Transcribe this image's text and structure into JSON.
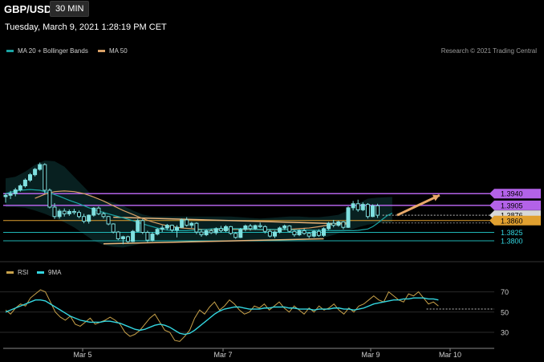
{
  "header": {
    "symbol": "GBP/USD",
    "interval": "30 MIN",
    "datetime": "Tuesday, March 9, 2021 1:28:19 PM CET"
  },
  "legend": {
    "ma20": "MA 20 + Bollinger Bands",
    "ma50": "MA 50",
    "rsi": "RSI",
    "rsi_ma": "9MA",
    "credit": "Research © 2021 Trading Central"
  },
  "colors": {
    "ma20": "#1aa3a3",
    "ma50": "#d9a066",
    "rsi": "#c8a24a",
    "rsi_ma": "#33d6e0",
    "resistance": "#b362e8",
    "support": "#1fb5b5",
    "candle": "#7fe0e0"
  },
  "chart_data": [
    {
      "type": "candlestick",
      "title": "GBP/USD 30 MIN",
      "x_ticks": [
        "Mar 5",
        "Mar 7",
        "Mar 9",
        "Mar 10"
      ],
      "levels": [
        {
          "value": 1.394,
          "label": "1.3940",
          "kind": "resistance"
        },
        {
          "value": 1.3905,
          "label": "1.3905",
          "kind": "resistance"
        },
        {
          "value": 1.3876,
          "label": "1.3876",
          "kind": "last"
        },
        {
          "value": 1.386,
          "label": "1.3860",
          "kind": "pivot"
        },
        {
          "value": 1.3825,
          "label": "1.3825",
          "kind": "support"
        },
        {
          "value": 1.38,
          "label": "1.3800",
          "kind": "support"
        }
      ],
      "ohlc": [
        [
          1.3931,
          1.3941,
          1.3913,
          1.3935
        ],
        [
          1.3935,
          1.3948,
          1.3924,
          1.394
        ],
        [
          1.394,
          1.3957,
          1.3932,
          1.3951
        ],
        [
          1.3951,
          1.3968,
          1.3946,
          1.3963
        ],
        [
          1.3963,
          1.3985,
          1.3958,
          1.398
        ],
        [
          1.398,
          1.4001,
          1.3975,
          1.3996
        ],
        [
          1.3996,
          1.4016,
          1.3991,
          1.4012
        ],
        [
          1.4012,
          1.4032,
          1.4008,
          1.4026
        ],
        [
          1.4026,
          1.403,
          1.394,
          1.395
        ],
        [
          1.395,
          1.3955,
          1.3896,
          1.39
        ],
        [
          1.39,
          1.3912,
          1.3865,
          1.3872
        ],
        [
          1.3872,
          1.3894,
          1.3866,
          1.3888
        ],
        [
          1.3888,
          1.3896,
          1.3872,
          1.388
        ],
        [
          1.388,
          1.3893,
          1.3874,
          1.3887
        ],
        [
          1.3887,
          1.3895,
          1.3878,
          1.3884
        ],
        [
          1.3884,
          1.389,
          1.3867,
          1.3872
        ],
        [
          1.3872,
          1.388,
          1.3852,
          1.3858
        ],
        [
          1.3858,
          1.3878,
          1.3851,
          1.3876
        ],
        [
          1.3876,
          1.39,
          1.3872,
          1.3897
        ],
        [
          1.3897,
          1.3902,
          1.3876,
          1.388
        ],
        [
          1.388,
          1.3886,
          1.3866,
          1.3872
        ],
        [
          1.3872,
          1.3874,
          1.3846,
          1.385
        ],
        [
          1.385,
          1.3852,
          1.3822,
          1.3826
        ],
        [
          1.3826,
          1.3829,
          1.3802,
          1.3806
        ],
        [
          1.3806,
          1.3815,
          1.379,
          1.3812
        ],
        [
          1.3812,
          1.3815,
          1.3794,
          1.3798
        ],
        [
          1.3798,
          1.3832,
          1.3796,
          1.3828
        ],
        [
          1.3828,
          1.3865,
          1.3826,
          1.386
        ],
        [
          1.386,
          1.3864,
          1.382,
          1.3825
        ],
        [
          1.3825,
          1.383,
          1.3796,
          1.3802
        ],
        [
          1.3802,
          1.3826,
          1.3798,
          1.382
        ],
        [
          1.382,
          1.3838,
          1.3816,
          1.3834
        ],
        [
          1.3834,
          1.3846,
          1.3826,
          1.3838
        ],
        [
          1.3838,
          1.385,
          1.3832,
          1.3846
        ],
        [
          1.3846,
          1.3848,
          1.3826,
          1.3832
        ],
        [
          1.3832,
          1.3846,
          1.381,
          1.384
        ],
        [
          1.384,
          1.3866,
          1.3838,
          1.3862
        ],
        [
          1.3862,
          1.387,
          1.3842,
          1.3846
        ],
        [
          1.3846,
          1.3856,
          1.3838,
          1.3852
        ],
        [
          1.3852,
          1.3855,
          1.382,
          1.3826
        ],
        [
          1.3826,
          1.3834,
          1.3812,
          1.3818
        ],
        [
          1.3818,
          1.3834,
          1.3814,
          1.383
        ],
        [
          1.383,
          1.3836,
          1.382,
          1.3824
        ],
        [
          1.3824,
          1.384,
          1.3818,
          1.3836
        ],
        [
          1.3836,
          1.3844,
          1.3824,
          1.383
        ],
        [
          1.383,
          1.3846,
          1.3826,
          1.3842
        ],
        [
          1.3842,
          1.3844,
          1.3818,
          1.3822
        ],
        [
          1.3822,
          1.3826,
          1.3806,
          1.381
        ],
        [
          1.381,
          1.3838,
          1.3808,
          1.3834
        ],
        [
          1.3834,
          1.3848,
          1.3828,
          1.3844
        ],
        [
          1.3844,
          1.385,
          1.383,
          1.3836
        ],
        [
          1.3836,
          1.3848,
          1.3832,
          1.3845
        ],
        [
          1.3845,
          1.3854,
          1.3838,
          1.3842
        ],
        [
          1.3842,
          1.3846,
          1.3822,
          1.3828
        ],
        [
          1.3828,
          1.3834,
          1.381,
          1.3814
        ],
        [
          1.3814,
          1.383,
          1.3808,
          1.3826
        ],
        [
          1.3826,
          1.3842,
          1.3822,
          1.3838
        ],
        [
          1.3838,
          1.3848,
          1.3832,
          1.3844
        ],
        [
          1.3844,
          1.3846,
          1.3824,
          1.3828
        ],
        [
          1.3828,
          1.3832,
          1.3812,
          1.3818
        ],
        [
          1.3818,
          1.3834,
          1.3814,
          1.383
        ],
        [
          1.383,
          1.3836,
          1.3818,
          1.3822
        ],
        [
          1.3822,
          1.3826,
          1.3808,
          1.3814
        ],
        [
          1.3814,
          1.3832,
          1.381,
          1.3828
        ],
        [
          1.3828,
          1.3834,
          1.3812,
          1.3816
        ],
        [
          1.3816,
          1.384,
          1.3812,
          1.3836
        ],
        [
          1.3836,
          1.3856,
          1.3832,
          1.3852
        ],
        [
          1.3852,
          1.3862,
          1.384,
          1.3846
        ],
        [
          1.3846,
          1.386,
          1.3842,
          1.3856
        ],
        [
          1.3856,
          1.3858,
          1.3834,
          1.384
        ],
        [
          1.384,
          1.3902,
          1.3838,
          1.3898
        ],
        [
          1.3898,
          1.3918,
          1.389,
          1.391
        ],
        [
          1.391,
          1.3922,
          1.3886,
          1.3892
        ],
        [
          1.3892,
          1.3914,
          1.3888,
          1.3908
        ],
        [
          1.3908,
          1.3912,
          1.3866,
          1.3872
        ],
        [
          1.3872,
          1.3908,
          1.387,
          1.3904
        ],
        [
          1.3904,
          1.391,
          1.3868,
          1.3876
        ]
      ],
      "ma20": [
        1.394,
        1.3944,
        1.395,
        1.3952,
        1.395,
        1.3942,
        1.3932,
        1.392,
        1.391,
        1.3898,
        1.3888,
        1.388,
        1.3872,
        1.3864,
        1.3855,
        1.3846,
        1.3838,
        1.3832,
        1.383,
        1.383,
        1.3832,
        1.3834,
        1.3836,
        1.3836,
        1.3836,
        1.3836,
        1.3834,
        1.3834,
        1.3834,
        1.3834,
        1.3832,
        1.3832,
        1.3831,
        1.3831,
        1.383,
        1.383,
        1.383,
        1.383,
        1.3831,
        1.3833,
        1.3835,
        1.3842,
        1.3852,
        1.3864,
        1.3875,
        1.3882
      ],
      "ma20_x": [
        0,
        1,
        3,
        5,
        7,
        9,
        11,
        13,
        15,
        17,
        19,
        21,
        23,
        25,
        27,
        29,
        31,
        33,
        35,
        37,
        39,
        41,
        43,
        45,
        47,
        49,
        51,
        53,
        55,
        57,
        59,
        61,
        63,
        65,
        67,
        69,
        70,
        71,
        72,
        73,
        74,
        75,
        76,
        77,
        78,
        79
      ],
      "ma50": [
        1.3926,
        1.3938,
        1.3946,
        1.3948,
        1.3946,
        1.394,
        1.393,
        1.3918,
        1.3904,
        1.389,
        1.3878,
        1.3866,
        1.3856,
        1.3848,
        1.3842,
        1.3838,
        1.3836,
        1.3834,
        1.3834,
        1.3834,
        1.3834,
        1.3834,
        1.3834,
        1.3833,
        1.3833,
        1.3833,
        1.3834,
        1.3836,
        1.3838,
        1.3842,
        1.3847,
        1.3852,
        1.3855
      ],
      "ma50_x": [
        6,
        8,
        10,
        12,
        14,
        16,
        18,
        20,
        22,
        24,
        26,
        28,
        30,
        32,
        34,
        36,
        38,
        40,
        42,
        44,
        46,
        48,
        50,
        52,
        54,
        56,
        58,
        60,
        62,
        64,
        66,
        68,
        70
      ],
      "bb_upper": [
        1.3985,
        1.399,
        1.4005,
        1.4025,
        1.4038,
        1.4036,
        1.402,
        1.399,
        1.396,
        1.393,
        1.392,
        1.3914,
        1.3904,
        1.389,
        1.3878,
        1.3872,
        1.3872,
        1.3872,
        1.3872,
        1.3872,
        1.3872,
        1.3872,
        1.3872,
        1.3872,
        1.387,
        1.3868,
        1.3866,
        1.3868,
        1.387,
        1.3872,
        1.3872,
        1.387,
        1.387,
        1.3873,
        1.3877,
        1.389,
        1.391,
        1.3925,
        1.3928,
        1.393
      ],
      "bb_lower": [
        1.39,
        1.39,
        1.3898,
        1.389,
        1.388,
        1.3868,
        1.3855,
        1.384,
        1.382,
        1.38,
        1.3788,
        1.3782,
        1.378,
        1.3786,
        1.3793,
        1.3797,
        1.3797,
        1.3797,
        1.3797,
        1.3797,
        1.3797,
        1.3796,
        1.3796,
        1.3796,
        1.3797,
        1.3797,
        1.3798,
        1.38,
        1.38,
        1.38,
        1.38,
        1.3803,
        1.3806,
        1.3813,
        1.3822,
        1.383,
        1.384,
        1.3848,
        1.3852,
        1.3855
      ],
      "bb_x": [
        0,
        2,
        4,
        6,
        8,
        10,
        12,
        14,
        16,
        18,
        20,
        22,
        24,
        26,
        28,
        30,
        32,
        34,
        36,
        38,
        40,
        42,
        44,
        46,
        48,
        50,
        52,
        54,
        56,
        58,
        60,
        62,
        64,
        66,
        68,
        70,
        72,
        74,
        76,
        79
      ],
      "triangle_upper": {
        "from": [
          22,
          1.387
        ],
        "to": [
          70,
          1.385
        ]
      },
      "triangle_lower": {
        "from": [
          20,
          1.3791
        ],
        "to": [
          65,
          1.3806
        ]
      },
      "forecast_arrow": {
        "from": [
          80,
          1.3876
        ],
        "to": [
          89,
          1.394
        ]
      }
    },
    {
      "type": "line",
      "title": "RSI",
      "y_ticks": [
        70,
        50,
        30
      ],
      "series": [
        {
          "name": "RSI",
          "values": [
            52,
            48,
            54,
            58,
            56,
            64,
            68,
            72,
            70,
            60,
            50,
            45,
            42,
            46,
            38,
            36,
            40,
            44,
            38,
            40,
            42,
            45,
            42,
            38,
            30,
            26,
            28,
            32,
            38,
            44,
            48,
            40,
            32,
            30,
            22,
            21,
            26,
            32,
            44,
            52,
            48,
            55,
            60,
            52,
            56,
            62,
            58,
            52,
            48,
            50,
            56,
            54,
            58,
            52,
            56,
            60,
            54,
            50,
            56,
            52,
            48,
            54,
            50,
            56,
            52,
            54,
            58,
            52,
            48,
            54,
            50,
            56,
            58,
            62,
            66,
            62,
            60,
            70,
            66,
            62,
            60,
            68,
            66,
            70,
            64,
            58,
            60,
            56
          ]
        },
        {
          "name": "9MA",
          "values": [
            50,
            52,
            54,
            56,
            58,
            60,
            62,
            62,
            61,
            58,
            55,
            52,
            49,
            46,
            44,
            42,
            41,
            40,
            40,
            40,
            41,
            41,
            40,
            39,
            37,
            35,
            33,
            32,
            33,
            35,
            37,
            38,
            37,
            35,
            32,
            29,
            28,
            29,
            32,
            36,
            40,
            44,
            48,
            51,
            53,
            54,
            55,
            55,
            54,
            53,
            53,
            53,
            54,
            54,
            55,
            55,
            55,
            54,
            54,
            53,
            53,
            53,
            52,
            53,
            53,
            53,
            54,
            54,
            53,
            53,
            52,
            53,
            54,
            56,
            58,
            59,
            60,
            61,
            62,
            62,
            63,
            63,
            64,
            64,
            64,
            63,
            63,
            62
          ]
        }
      ]
    }
  ]
}
